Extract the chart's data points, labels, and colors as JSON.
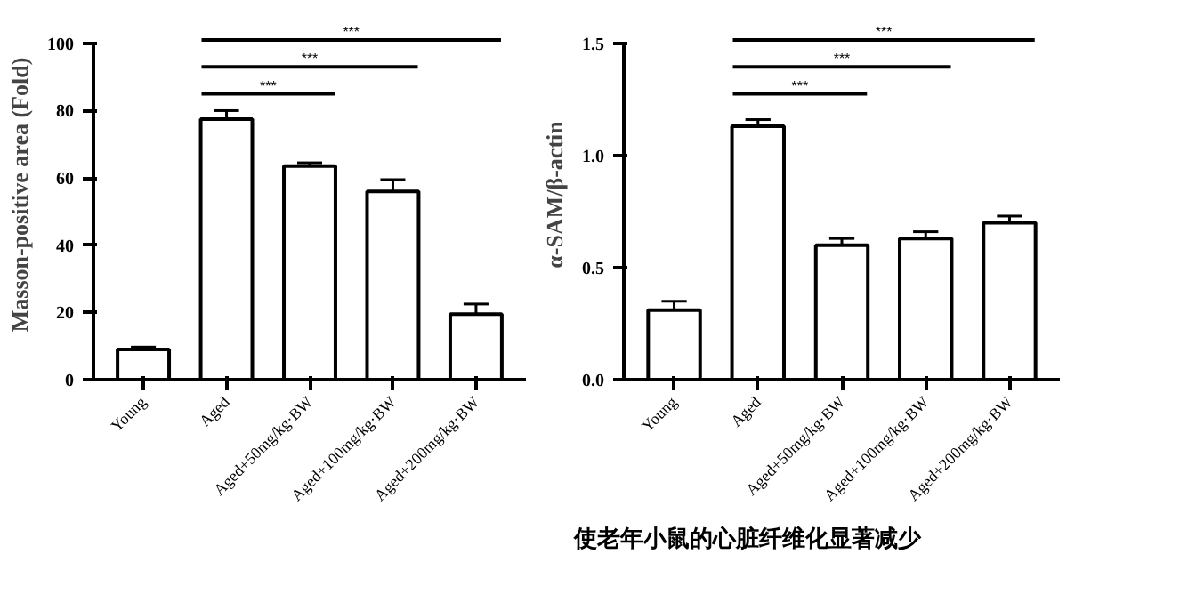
{
  "chart_data": [
    {
      "type": "bar",
      "ylabel": "Masson-positive area (Fold)",
      "categories": [
        "Young",
        "Aged",
        "Aged+50mg/kg·BW",
        "Aged+100mg/kg·BW",
        "Aged+200mg/kg·BW"
      ],
      "values": [
        9,
        77.5,
        63.5,
        56,
        19.5
      ],
      "color": "#ffffff",
      "errors": [
        [
          9,
          9.7
        ],
        [
          77.5,
          80
        ],
        [
          63.5,
          64.5
        ],
        [
          56,
          59.5
        ],
        [
          19.5,
          22.5
        ]
      ],
      "ylim": [
        0,
        100
      ],
      "yticks": [
        0,
        20,
        40,
        60,
        80,
        100
      ],
      "grid": false,
      "annotations": [
        "***",
        "***",
        "***"
      ]
    },
    {
      "type": "bar",
      "ylabel": "α-SAM/β-actin",
      "categories": [
        "Young",
        "Aged",
        "Aged+50mg/kg·BW",
        "Aged+100mg/kg·BW",
        "Aged+200mg/kg·BW"
      ],
      "values": [
        0.31,
        1.13,
        0.6,
        0.63,
        0.7
      ],
      "color": "#ffffff",
      "errors": [
        [
          0.31,
          0.35
        ],
        [
          1.13,
          1.16
        ],
        [
          0.6,
          0.63
        ],
        [
          0.63,
          0.66
        ],
        [
          0.7,
          0.73
        ]
      ],
      "ylim": [
        0,
        1.5
      ],
      "yticks": [
        {
          "value": 0,
          "label": "0.0"
        },
        {
          "value": 0.5,
          "label": "0.5"
        },
        {
          "value": 1,
          "label": "1.0"
        },
        {
          "value": 1.5,
          "label": "1.5"
        }
      ],
      "grid": false,
      "annotations": [
        "***",
        "***",
        "***",
        "使老年小鼠的心脏纤维化显著减少"
      ]
    }
  ]
}
